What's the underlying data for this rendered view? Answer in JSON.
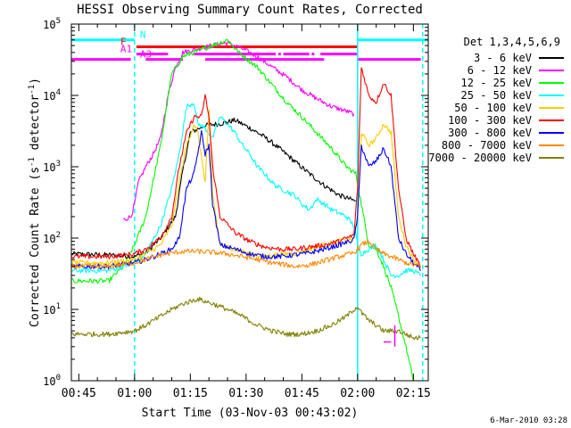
{
  "chart_data": {
    "type": "line",
    "title": "HESSI Observing Summary Count Rates, Corrected",
    "xlabel": "Start Time (03-Nov-03 00:43:02)",
    "ylabel_main": "Corrected Count Rate (s",
    "ylabel_sup1": "-1",
    "ylabel_mid": " detector",
    "ylabel_sup2": "-1",
    "ylabel_end": ")",
    "x_unit": "minutes after 00:43:02",
    "xlim": [
      0,
      96
    ],
    "ylim": [
      1,
      100000
    ],
    "yscale": "log",
    "x_ticks": [
      {
        "x": 2,
        "label": "00:45"
      },
      {
        "x": 17,
        "label": "01:00"
      },
      {
        "x": 32,
        "label": "01:15"
      },
      {
        "x": 47,
        "label": "01:30"
      },
      {
        "x": 62,
        "label": "01:45"
      },
      {
        "x": 77,
        "label": "02:00"
      },
      {
        "x": 92,
        "label": "02:15"
      }
    ],
    "y_ticks": [
      {
        "y": 1,
        "base": "10",
        "exp": "0"
      },
      {
        "y": 10,
        "base": "10",
        "exp": "1"
      },
      {
        "y": 100,
        "base": "10",
        "exp": "2"
      },
      {
        "y": 1000,
        "base": "10",
        "exp": "3"
      },
      {
        "y": 10000,
        "base": "10",
        "exp": "4"
      },
      {
        "y": 100000,
        "base": "10",
        "exp": "5"
      }
    ],
    "legend_title": "Det 1,3,4,5,6,9",
    "legend_position": "right",
    "series": [
      {
        "name": "3 - 6 keV",
        "color": "#000000",
        "points": [
          [
            0,
            60
          ],
          [
            10,
            58
          ],
          [
            17,
            55
          ],
          [
            20,
            62
          ],
          [
            24,
            100
          ],
          [
            28,
            200
          ],
          [
            30,
            900
          ],
          [
            32,
            3000
          ],
          [
            36,
            3800
          ],
          [
            40,
            4000
          ],
          [
            44,
            4500
          ],
          [
            48,
            3500
          ],
          [
            52,
            2600
          ],
          [
            56,
            1800
          ],
          [
            60,
            1200
          ],
          [
            64,
            800
          ],
          [
            68,
            550
          ],
          [
            72,
            400
          ],
          [
            75,
            350
          ],
          [
            76.5,
            330
          ]
        ]
      },
      {
        "name": "6 - 12 keV",
        "color": "#ff00ff",
        "points": [
          [
            14,
            180
          ],
          [
            16,
            200
          ],
          [
            17,
            300
          ],
          [
            18,
            600
          ],
          [
            20,
            1000
          ],
          [
            22,
            1500
          ],
          [
            24,
            2500
          ],
          [
            26,
            10000
          ],
          [
            28,
            25000
          ],
          [
            30,
            40000
          ],
          [
            34,
            45000
          ],
          [
            38,
            50000
          ],
          [
            42,
            55000
          ],
          [
            46,
            45000
          ],
          [
            50,
            35000
          ],
          [
            54,
            25000
          ],
          [
            58,
            18000
          ],
          [
            62,
            12000
          ],
          [
            66,
            9000
          ],
          [
            70,
            7000
          ],
          [
            74,
            6000
          ],
          [
            76,
            5500
          ]
        ]
      },
      {
        "name": "12 - 25 keV",
        "color": "#00ff00",
        "points": [
          [
            0,
            25
          ],
          [
            10,
            25
          ],
          [
            14,
            40
          ],
          [
            17,
            80
          ],
          [
            20,
            200
          ],
          [
            24,
            2000
          ],
          [
            27,
            20000
          ],
          [
            30,
            35000
          ],
          [
            34,
            42000
          ],
          [
            40,
            55000
          ],
          [
            42,
            60000
          ],
          [
            45,
            40000
          ],
          [
            50,
            25000
          ],
          [
            54,
            14000
          ],
          [
            58,
            8000
          ],
          [
            62,
            5000
          ],
          [
            66,
            3000
          ],
          [
            70,
            1800
          ],
          [
            74,
            1000
          ],
          [
            76.5,
            800
          ],
          [
            78,
            300
          ],
          [
            80,
            80
          ],
          [
            82,
            70
          ],
          [
            84,
            40
          ],
          [
            86,
            20
          ],
          [
            88,
            8
          ],
          [
            90,
            3
          ],
          [
            92,
            1
          ]
        ]
      },
      {
        "name": "25 - 50 keV",
        "color": "#00ffff",
        "points": [
          [
            0,
            35
          ],
          [
            10,
            35
          ],
          [
            17,
            45
          ],
          [
            20,
            60
          ],
          [
            24,
            150
          ],
          [
            27,
            500
          ],
          [
            29,
            1500
          ],
          [
            31,
            7000
          ],
          [
            33,
            8000
          ],
          [
            34,
            4000
          ],
          [
            36,
            3500
          ],
          [
            38,
            2500
          ],
          [
            40,
            5000
          ],
          [
            42,
            4000
          ],
          [
            44,
            3000
          ],
          [
            46,
            2000
          ],
          [
            48,
            1500
          ],
          [
            50,
            1000
          ],
          [
            52,
            800
          ],
          [
            54,
            600
          ],
          [
            56,
            500
          ],
          [
            58,
            450
          ],
          [
            60,
            400
          ],
          [
            62,
            300
          ],
          [
            64,
            250
          ],
          [
            66,
            350
          ],
          [
            68,
            300
          ],
          [
            70,
            250
          ],
          [
            74,
            200
          ],
          [
            76,
            150
          ],
          [
            77,
            80
          ],
          [
            78,
            60
          ],
          [
            80,
            70
          ],
          [
            82,
            80
          ],
          [
            84,
            50
          ],
          [
            86,
            30
          ],
          [
            88,
            30
          ],
          [
            90,
            35
          ],
          [
            92,
            35
          ],
          [
            94,
            30
          ]
        ]
      },
      {
        "name": "50 - 100 keV",
        "color": "#ffcc00",
        "points": [
          [
            0,
            45
          ],
          [
            10,
            45
          ],
          [
            17,
            50
          ],
          [
            20,
            60
          ],
          [
            24,
            80
          ],
          [
            27,
            150
          ],
          [
            29,
            600
          ],
          [
            31,
            2000
          ],
          [
            33,
            4000
          ],
          [
            34,
            3000
          ],
          [
            36,
            600
          ],
          [
            37,
            6000
          ],
          [
            38,
            400
          ],
          [
            40,
            80
          ],
          [
            44,
            70
          ],
          [
            48,
            60
          ],
          [
            52,
            55
          ],
          [
            56,
            60
          ],
          [
            60,
            60
          ],
          [
            64,
            70
          ],
          [
            68,
            80
          ],
          [
            72,
            90
          ],
          [
            76,
            100
          ],
          [
            77,
            200
          ],
          [
            78,
            3000
          ],
          [
            80,
            2000
          ],
          [
            82,
            2500
          ],
          [
            84,
            4000
          ],
          [
            86,
            3000
          ],
          [
            88,
            200
          ],
          [
            90,
            80
          ],
          [
            92,
            50
          ],
          [
            94,
            40
          ]
        ]
      },
      {
        "name": "100 - 300 keV",
        "color": "#ff0000",
        "points": [
          [
            0,
            55
          ],
          [
            10,
            55
          ],
          [
            17,
            60
          ],
          [
            20,
            70
          ],
          [
            24,
            100
          ],
          [
            27,
            200
          ],
          [
            29,
            1000
          ],
          [
            31,
            3000
          ],
          [
            33,
            5000
          ],
          [
            35,
            5000
          ],
          [
            36,
            10000
          ],
          [
            37,
            5000
          ],
          [
            38,
            1000
          ],
          [
            40,
            200
          ],
          [
            44,
            120
          ],
          [
            48,
            90
          ],
          [
            52,
            75
          ],
          [
            56,
            70
          ],
          [
            60,
            70
          ],
          [
            64,
            75
          ],
          [
            68,
            80
          ],
          [
            72,
            90
          ],
          [
            76,
            110
          ],
          [
            77,
            500
          ],
          [
            78,
            25000
          ],
          [
            80,
            10000
          ],
          [
            82,
            8000
          ],
          [
            84,
            15000
          ],
          [
            86,
            10000
          ],
          [
            88,
            500
          ],
          [
            90,
            100
          ],
          [
            92,
            60
          ],
          [
            94,
            40
          ]
        ]
      },
      {
        "name": "300 - 800 keV",
        "color": "#0000ff",
        "points": [
          [
            0,
            40
          ],
          [
            10,
            40
          ],
          [
            17,
            45
          ],
          [
            20,
            50
          ],
          [
            24,
            60
          ],
          [
            27,
            70
          ],
          [
            29,
            100
          ],
          [
            31,
            500
          ],
          [
            33,
            800
          ],
          [
            35,
            3000
          ],
          [
            36,
            1500
          ],
          [
            37,
            2000
          ],
          [
            38,
            300
          ],
          [
            40,
            80
          ],
          [
            44,
            70
          ],
          [
            48,
            60
          ],
          [
            52,
            55
          ],
          [
            56,
            55
          ],
          [
            60,
            58
          ],
          [
            64,
            62
          ],
          [
            68,
            70
          ],
          [
            72,
            80
          ],
          [
            76,
            95
          ],
          [
            77,
            200
          ],
          [
            78,
            2000
          ],
          [
            80,
            1000
          ],
          [
            82,
            1200
          ],
          [
            84,
            1800
          ],
          [
            86,
            1000
          ],
          [
            88,
            100
          ],
          [
            90,
            60
          ],
          [
            92,
            45
          ],
          [
            94,
            35
          ]
        ]
      },
      {
        "name": "800 - 7000 keV",
        "color": "#ff8800",
        "points": [
          [
            0,
            40
          ],
          [
            10,
            40
          ],
          [
            17,
            45
          ],
          [
            20,
            50
          ],
          [
            24,
            58
          ],
          [
            27,
            62
          ],
          [
            30,
            65
          ],
          [
            34,
            65
          ],
          [
            38,
            63
          ],
          [
            42,
            60
          ],
          [
            46,
            55
          ],
          [
            50,
            50
          ],
          [
            54,
            45
          ],
          [
            58,
            42
          ],
          [
            60,
            40
          ],
          [
            64,
            42
          ],
          [
            68,
            48
          ],
          [
            72,
            55
          ],
          [
            76,
            62
          ],
          [
            77,
            70
          ],
          [
            78,
            80
          ],
          [
            80,
            90
          ],
          [
            82,
            70
          ],
          [
            84,
            60
          ],
          [
            86,
            55
          ],
          [
            88,
            50
          ],
          [
            90,
            45
          ],
          [
            92,
            42
          ],
          [
            94,
            40
          ]
        ]
      },
      {
        "name": "7000 - 20000 keV",
        "color": "#808000",
        "points": [
          [
            0,
            4.5
          ],
          [
            10,
            4.5
          ],
          [
            17,
            5
          ],
          [
            20,
            6
          ],
          [
            24,
            8
          ],
          [
            27,
            10
          ],
          [
            30,
            12
          ],
          [
            34,
            14
          ],
          [
            38,
            12
          ],
          [
            42,
            10
          ],
          [
            46,
            8
          ],
          [
            50,
            6
          ],
          [
            54,
            5
          ],
          [
            58,
            4.5
          ],
          [
            62,
            4.5
          ],
          [
            66,
            5
          ],
          [
            70,
            6
          ],
          [
            74,
            8
          ],
          [
            76,
            10
          ],
          [
            77,
            11
          ],
          [
            78,
            9
          ],
          [
            80,
            7
          ],
          [
            82,
            6
          ],
          [
            84,
            5
          ],
          [
            86,
            5
          ],
          [
            88,
            5
          ],
          [
            90,
            4.5
          ],
          [
            92,
            4
          ],
          [
            94,
            4
          ]
        ]
      }
    ],
    "flag_bars": [
      {
        "label": "N",
        "label_color": "#00ffff",
        "color": "#00ffff",
        "level": 60000,
        "segments": [
          [
            0,
            17
          ],
          [
            77,
            96
          ]
        ]
      },
      {
        "label": "F",
        "label_color": "#ff0000",
        "color": "#ff0000",
        "level": 48000,
        "segments": [
          [
            17.5,
            77
          ]
        ]
      },
      {
        "label": "A1",
        "label_color": "#ff00ff",
        "color": "#ff00ff",
        "level": 38000,
        "segments": [
          [
            17.5,
            26
          ],
          [
            33,
            55
          ],
          [
            57,
            64
          ],
          [
            67,
            77
          ]
        ],
        "dots": [
          56,
          60,
          65
        ]
      },
      {
        "label": "A3",
        "label_color": "#ff00ff",
        "color": "#ff00ff",
        "level": 32000,
        "segments": [
          [
            0,
            16
          ],
          [
            20,
            30
          ],
          [
            36,
            68
          ],
          [
            77,
            94
          ]
        ]
      }
    ],
    "vlines": [
      {
        "x": 17,
        "style": "dashed",
        "color": "#00ffff"
      },
      {
        "x": 77,
        "style": "solid",
        "color": "#00ffff"
      },
      {
        "x": 94.5,
        "style": "dashed",
        "color": "#00ffff"
      }
    ],
    "extra_marks": [
      {
        "color": "#ff00ff",
        "from": [
          84,
          3.5
        ],
        "to": [
          86,
          3.5
        ]
      },
      {
        "color": "#ff00ff",
        "from": [
          87,
          3
        ],
        "to": [
          87,
          6
        ]
      }
    ],
    "timestamp": "6-Mar-2010 03:28"
  }
}
